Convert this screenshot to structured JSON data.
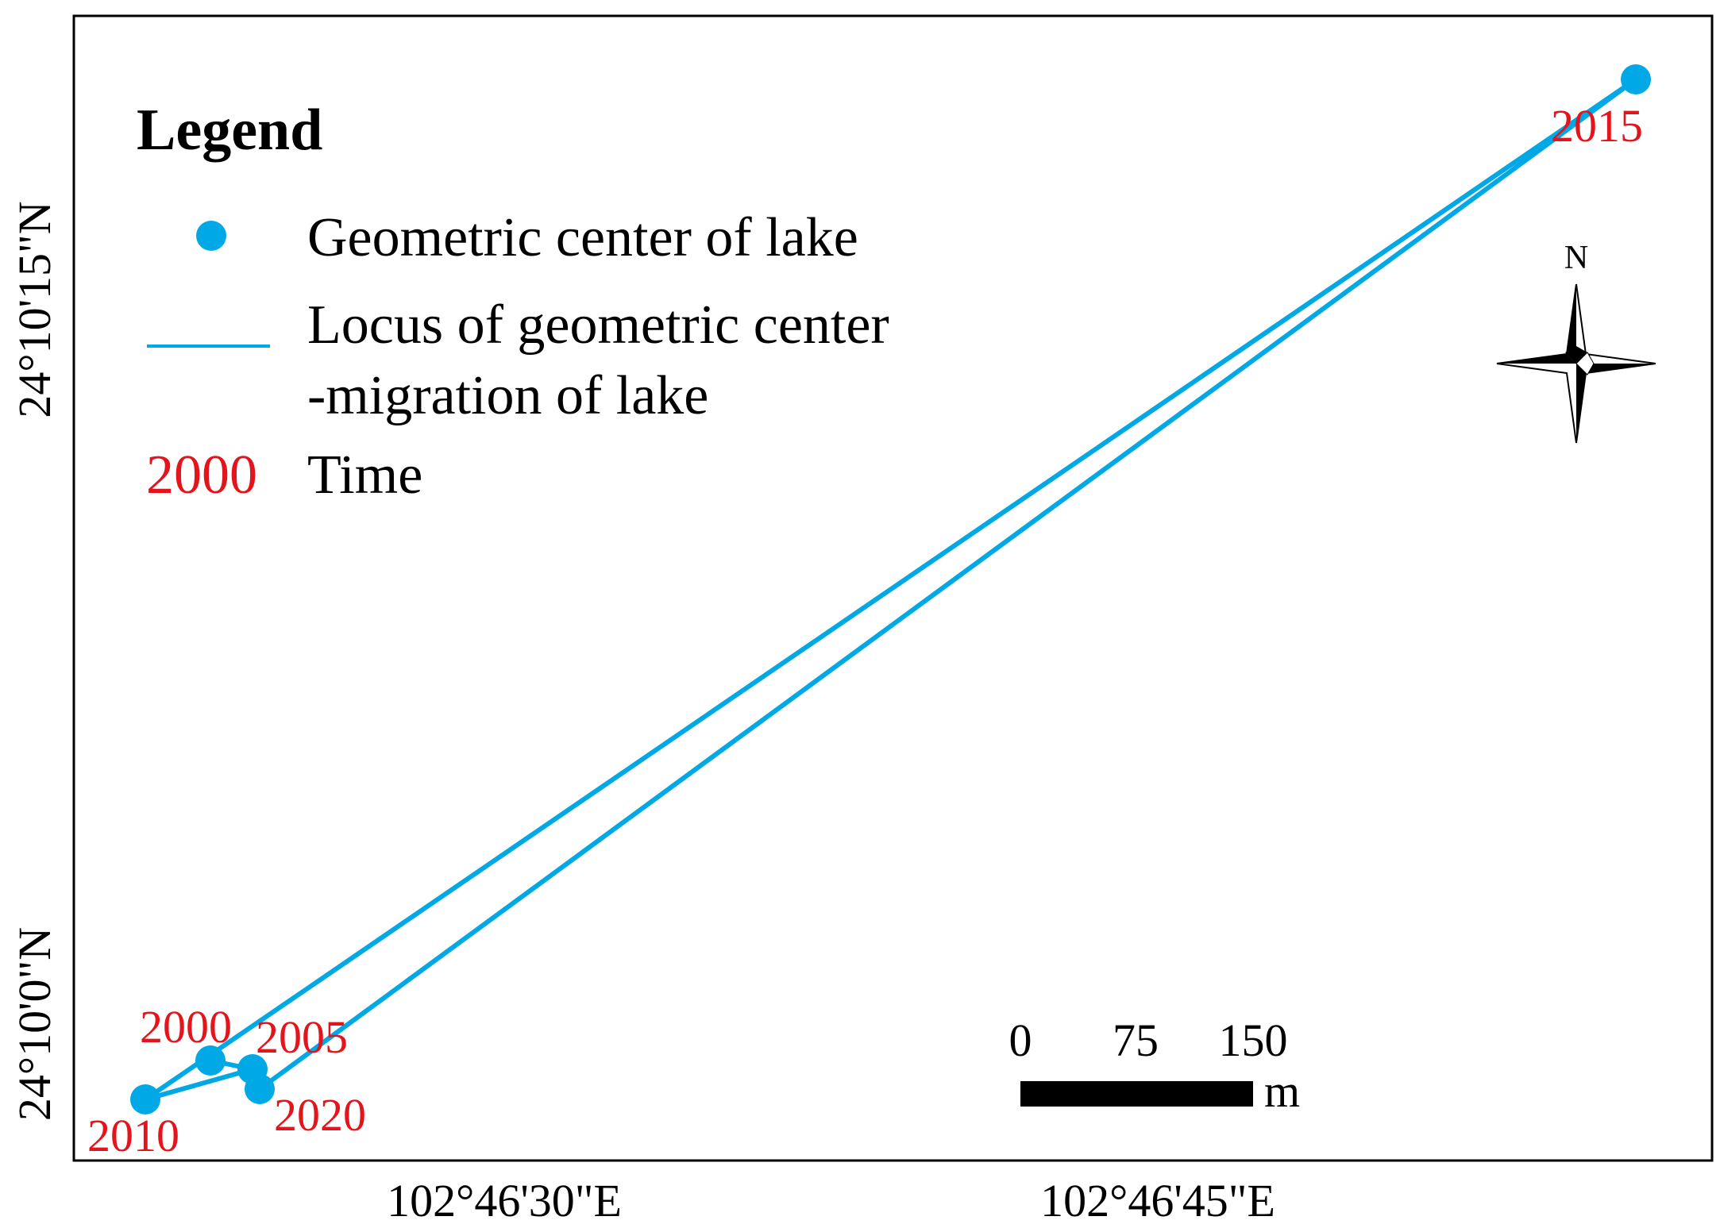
{
  "colors": {
    "accent": "#00a8e6",
    "label": "#e3141b",
    "frame": "#000000",
    "text": "#000000"
  },
  "legend": {
    "title": "Legend",
    "items": [
      {
        "symbol": "point",
        "label": "Geometric center of lake"
      },
      {
        "symbol": "line",
        "label_lines": [
          "Locus of geometric center",
          "-migration of lake"
        ]
      },
      {
        "symbol": "text",
        "sample": "2000",
        "label": "Time"
      }
    ]
  },
  "axes": {
    "x_ticks": [
      "102°46'30\"E",
      "102°46'45\"E"
    ],
    "y_ticks": [
      "24°10'15\"N",
      "24°10'0\"N"
    ]
  },
  "north_arrow": {
    "label": "N",
    "icon": "north-arrow-icon"
  },
  "scale_bar": {
    "labels": [
      "0",
      "75",
      "150"
    ],
    "unit": "m"
  },
  "chart_data": {
    "type": "line",
    "series": [
      {
        "points": [
          {
            "year": "2000"
          },
          {
            "year": "2005"
          },
          {
            "year": "2010"
          },
          {
            "year": "2015"
          },
          {
            "year": "2020"
          }
        ]
      }
    ],
    "path_order": [
      "2000",
      "2005",
      "2010",
      "2015",
      "2020"
    ],
    "x_ticks": [
      "102°46'30\"E",
      "102°46'45\"E"
    ],
    "y_ticks": [
      "24°10'15\"N",
      "24°10'0\"N"
    ],
    "grid": false,
    "legend": "top-left"
  }
}
